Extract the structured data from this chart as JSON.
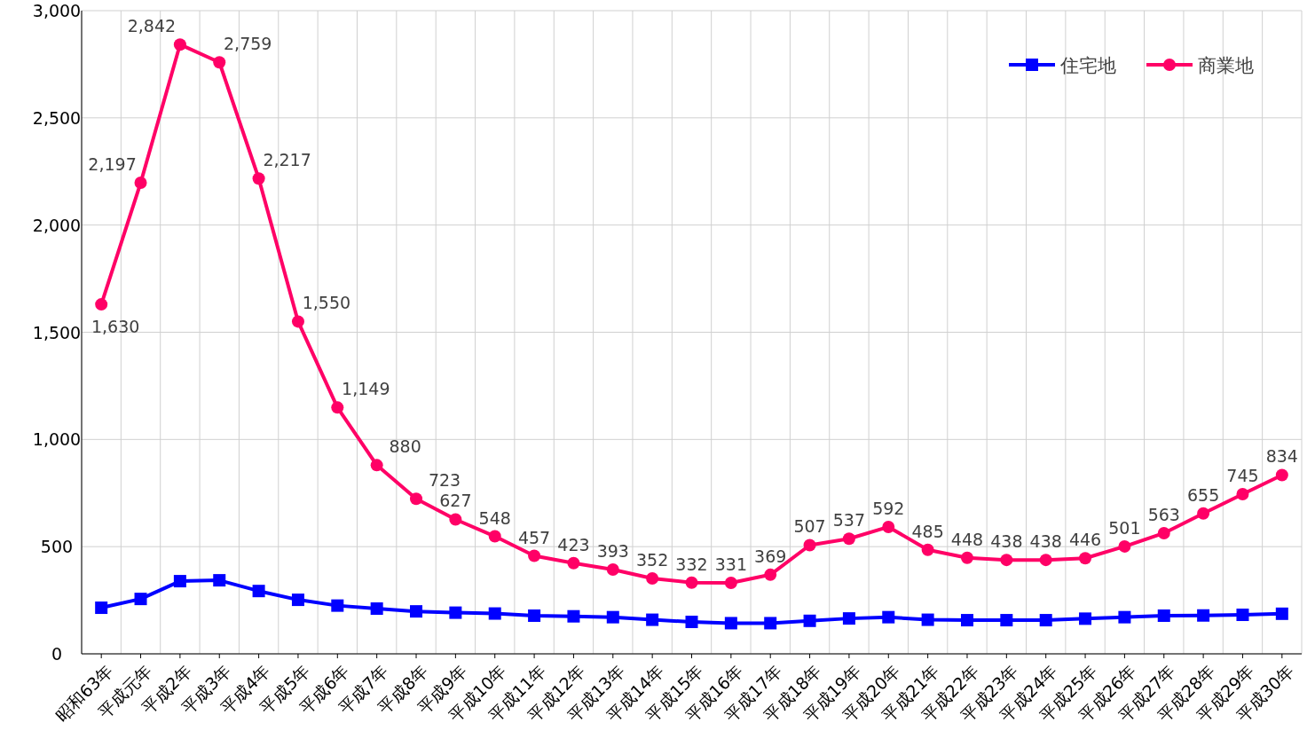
{
  "chart_data": {
    "type": "line",
    "categories": [
      "昭和63年",
      "平成元年",
      "平成2年",
      "平成3年",
      "平成4年",
      "平成5年",
      "平成6年",
      "平成7年",
      "平成8年",
      "平成9年",
      "平成10年",
      "平成11年",
      "平成12年",
      "平成13年",
      "平成14年",
      "平成15年",
      "平成16年",
      "平成17年",
      "平成18年",
      "平成19年",
      "平成20年",
      "平成21年",
      "平成22年",
      "平成23年",
      "平成24年",
      "平成25年",
      "平成26年",
      "平成27年",
      "平成28年",
      "平成29年",
      "平成30年"
    ],
    "series": [
      {
        "name": "住宅地",
        "color": "#0000ff",
        "marker": "square",
        "values": [
          215,
          256,
          339,
          343,
          293,
          252,
          225,
          211,
          198,
          192,
          188,
          178,
          175,
          171,
          159,
          149,
          143,
          143,
          154,
          165,
          171,
          159,
          157,
          157,
          157,
          164,
          171,
          178,
          179,
          182,
          187
        ]
      },
      {
        "name": "商業地",
        "color": "#ff0066",
        "marker": "circle",
        "values": [
          1630,
          2197,
          2842,
          2759,
          2217,
          1550,
          1149,
          880,
          723,
          627,
          548,
          457,
          423,
          393,
          352,
          332,
          331,
          369,
          507,
          537,
          592,
          485,
          448,
          438,
          438,
          446,
          501,
          563,
          655,
          745,
          834
        ],
        "value_labels": [
          "1,630",
          "2,197",
          "2,842",
          "2,759",
          "2,217",
          "1,550",
          "1,149",
          "880",
          "723",
          "627",
          "548",
          "457",
          "423",
          "393",
          "352",
          "332",
          "331",
          "369",
          "507",
          "537",
          "592",
          "485",
          "448",
          "438",
          "438",
          "446",
          "501",
          "563",
          "655",
          "745",
          "834"
        ]
      }
    ],
    "ylim": [
      0,
      3000
    ],
    "yticks": [
      0,
      500,
      {
        "value": 1000,
        "label": "1,000"
      },
      {
        "value": 1500,
        "label": "1,500"
      },
      {
        "value": 2000,
        "label": "2,000"
      },
      {
        "value": 2500,
        "label": "2,500"
      },
      {
        "value": 3000,
        "label": "3,000"
      }
    ],
    "grid": true,
    "legend": "top right",
    "line_style": "solid"
  }
}
